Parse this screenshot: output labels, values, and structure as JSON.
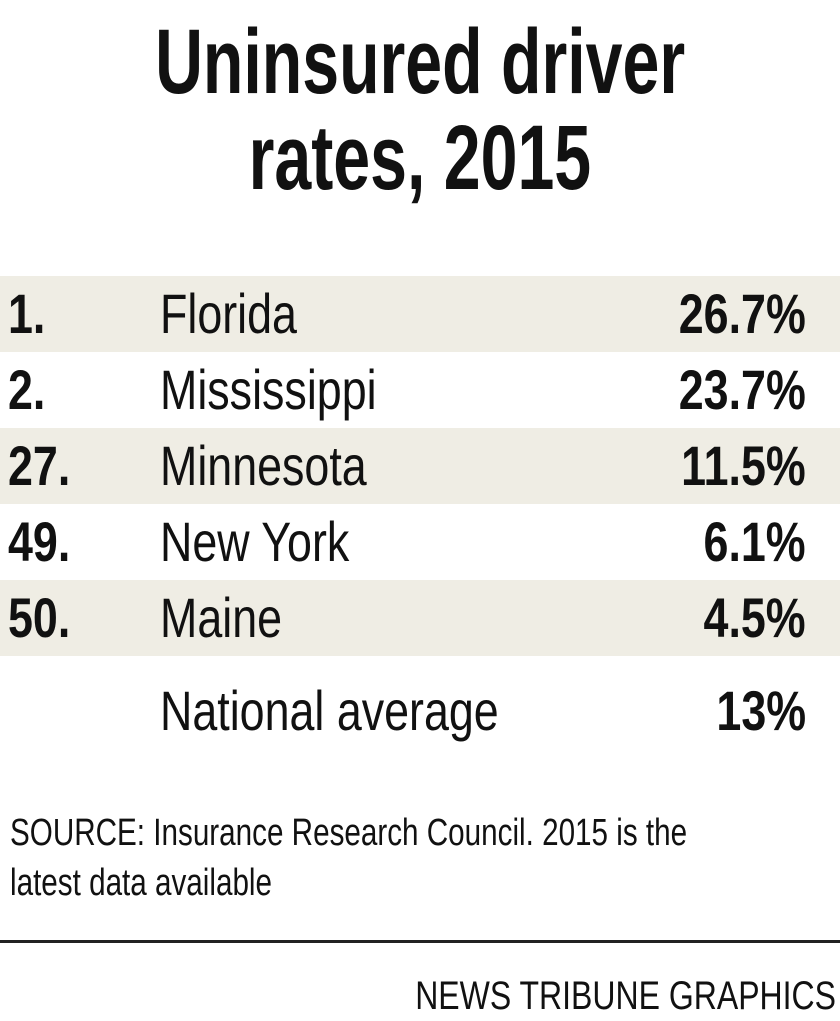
{
  "chart_data": {
    "type": "table",
    "title_line1": "Uninsured driver",
    "title_line2": "rates, 2015",
    "rows": [
      {
        "rank": "1.",
        "state": "Florida",
        "rate": "26.7%",
        "value": 26.7
      },
      {
        "rank": "2.",
        "state": "Mississippi",
        "rate": "23.7%",
        "value": 23.7
      },
      {
        "rank": "27.",
        "state": "Minnesota",
        "rate": "11.5%",
        "value": 11.5
      },
      {
        "rank": "49.",
        "state": "New York",
        "rate": "6.1%",
        "value": 6.1
      },
      {
        "rank": "50.",
        "state": "Maine",
        "rate": "4.5%",
        "value": 4.5
      }
    ],
    "national": {
      "label": "National average",
      "rate": "13%",
      "value": 13
    },
    "source": "SOURCE: Insurance Research Council. 2015 is the latest data available",
    "source_line1": "SOURCE: Insurance Research Council. 2015 is the",
    "source_line2": "latest data available",
    "credit": "NEWS TRIBUNE GRAPHICS"
  },
  "colors": {
    "row_shade": "#efede4",
    "text": "#111111"
  }
}
